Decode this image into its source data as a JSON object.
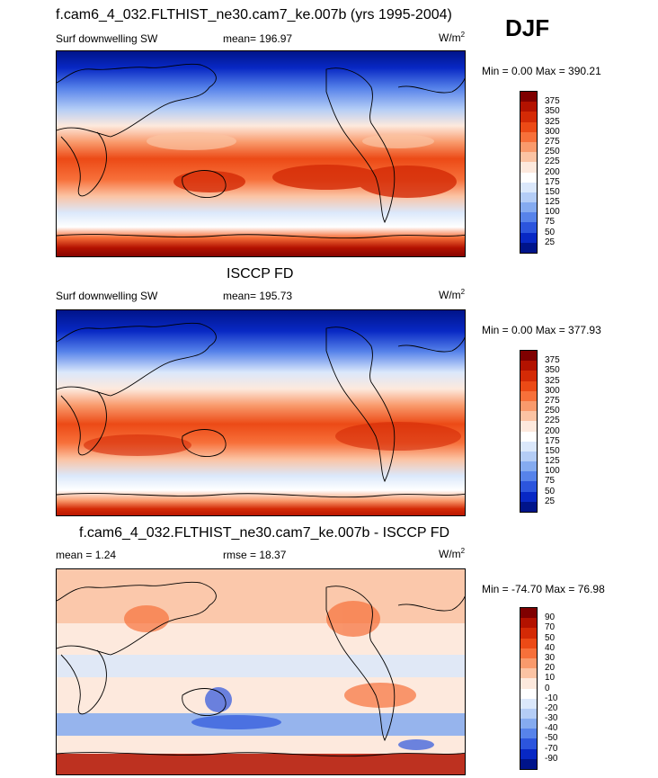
{
  "season": "DJF",
  "units_html": "W/m",
  "units_sup": "2",
  "panels": [
    {
      "title": "f.cam6_4_032.FLTHIST_ne30.cam7_ke.007b (yrs 1995-2004)",
      "left_label": "Surf downwelling SW",
      "mid_label": "mean= 196.97",
      "units": "W/m",
      "units_sup": "2",
      "minmax": "Min =   0.00 Max = 390.21"
    },
    {
      "title": "ISCCP FD",
      "left_label": "Surf downwelling SW",
      "mid_label": "mean= 195.73",
      "units": "W/m",
      "units_sup": "2",
      "minmax": "Min =   0.00 Max = 377.93"
    },
    {
      "title": "f.cam6_4_032.FLTHIST_ne30.cam7_ke.007b - ISCCP FD",
      "left_label": "mean =   1.24",
      "mid_label": "rmse =  18.37",
      "units": "W/m",
      "units_sup": "2",
      "minmax": "Min = -74.70 Max =  76.98"
    }
  ],
  "colorbar_abs": {
    "labels": [
      "375",
      "350",
      "325",
      "300",
      "275",
      "250",
      "225",
      "200",
      "175",
      "150",
      "125",
      "100",
      "75",
      "50",
      "25"
    ],
    "colors": [
      "#7f0000",
      "#b31200",
      "#d42a06",
      "#ec4a16",
      "#f7703a",
      "#f99a6c",
      "#fbc3a3",
      "#fde9dd",
      "#ffffff",
      "#dbe8fb",
      "#b4cdf6",
      "#85abf0",
      "#5783ea",
      "#2c55dd",
      "#0828c4",
      "#00148a"
    ]
  },
  "colorbar_diff": {
    "labels": [
      "90",
      "70",
      "50",
      "40",
      "30",
      "20",
      "10",
      "0",
      "-10",
      "-20",
      "-30",
      "-40",
      "-50",
      "-70",
      "-90"
    ],
    "colors": [
      "#7f0000",
      "#b31200",
      "#d42a06",
      "#ec4a16",
      "#f7703a",
      "#f99a6c",
      "#fbc3a3",
      "#fde9dd",
      "#ffffff",
      "#dbe8fb",
      "#b4cdf6",
      "#85abf0",
      "#5783ea",
      "#2c55dd",
      "#0828c4",
      "#00148a"
    ]
  },
  "chart_data": [
    {
      "type": "heatmap",
      "title": "f.cam6_4_032.FLTHIST_ne30.cam7_ke.007b (yrs 1995-2004)",
      "variable": "Surf downwelling SW",
      "mean": 196.97,
      "min": 0.0,
      "max": 390.21,
      "levels": [
        25,
        50,
        75,
        100,
        125,
        150,
        175,
        200,
        225,
        250,
        275,
        300,
        325,
        350,
        375
      ]
    },
    {
      "type": "heatmap",
      "title": "ISCCP FD",
      "variable": "Surf downwelling SW",
      "mean": 195.73,
      "min": 0.0,
      "max": 377.93,
      "levels": [
        25,
        50,
        75,
        100,
        125,
        150,
        175,
        200,
        225,
        250,
        275,
        300,
        325,
        350,
        375
      ]
    },
    {
      "type": "heatmap",
      "title": "f.cam6_4_032.FLTHIST_ne30.cam7_ke.007b - ISCCP FD",
      "mean": 1.24,
      "rmse": 18.37,
      "min": -74.7,
      "max": 76.98,
      "levels": [
        -90,
        -70,
        -50,
        -40,
        -30,
        -20,
        -10,
        0,
        10,
        20,
        30,
        40,
        50,
        70,
        90
      ]
    }
  ]
}
